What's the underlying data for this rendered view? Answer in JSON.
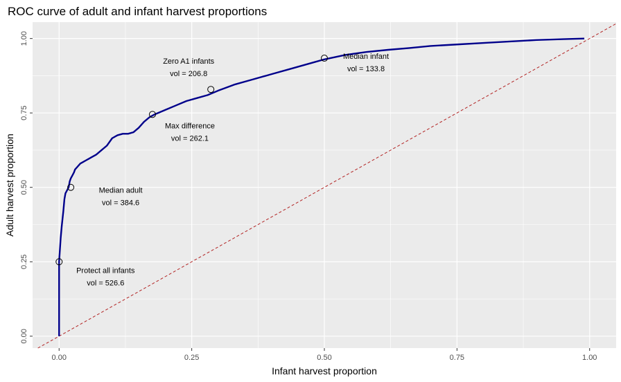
{
  "chart_data": {
    "type": "line",
    "title": "ROC curve of adult and infant harvest proportions",
    "xlabel": "Infant harvest proportion",
    "ylabel": "Adult harvest proportion",
    "xlim": [
      -0.05,
      1.05
    ],
    "ylim": [
      -0.04,
      1.055
    ],
    "x_ticks": [
      0.0,
      0.25,
      0.5,
      0.75,
      1.0
    ],
    "x_tick_labels": [
      "0.00",
      "0.25",
      "0.50",
      "0.75",
      "1.00"
    ],
    "y_ticks": [
      0.0,
      0.25,
      0.5,
      0.75,
      1.0
    ],
    "y_tick_labels": [
      "0.00",
      "0.25",
      "0.50",
      "0.75",
      "1.00"
    ],
    "grid": true,
    "colors": {
      "panel": "#ebebeb",
      "grid": "#ffffff",
      "curve": "#00008b",
      "reference": "#b22222"
    },
    "series": [
      {
        "x": [
          0.0,
          0.0,
          0.003,
          0.005,
          0.008,
          0.01,
          0.012,
          0.015,
          0.018,
          0.02,
          0.022,
          0.025,
          0.028,
          0.03,
          0.035,
          0.04,
          0.045,
          0.05,
          0.06,
          0.07,
          0.08,
          0.09,
          0.1,
          0.11,
          0.12,
          0.13,
          0.14,
          0.15,
          0.16,
          0.17,
          0.18,
          0.2,
          0.22,
          0.24,
          0.26,
          0.28,
          0.3,
          0.33,
          0.36,
          0.4,
          0.44,
          0.48,
          0.5,
          0.54,
          0.58,
          0.62,
          0.66,
          0.7,
          0.75,
          0.8,
          0.85,
          0.9,
          0.95,
          0.99
        ],
        "y": [
          0.0,
          0.25,
          0.33,
          0.37,
          0.42,
          0.46,
          0.48,
          0.49,
          0.5,
          0.52,
          0.53,
          0.54,
          0.55,
          0.56,
          0.57,
          0.58,
          0.585,
          0.59,
          0.6,
          0.61,
          0.625,
          0.64,
          0.665,
          0.675,
          0.68,
          0.68,
          0.685,
          0.7,
          0.72,
          0.735,
          0.745,
          0.76,
          0.775,
          0.79,
          0.8,
          0.81,
          0.825,
          0.845,
          0.86,
          0.88,
          0.9,
          0.92,
          0.93,
          0.945,
          0.955,
          0.962,
          0.968,
          0.975,
          0.98,
          0.985,
          0.99,
          0.995,
          0.998,
          1.0
        ]
      },
      {
        "x": [
          0.0,
          1.0
        ],
        "y": [
          0.0,
          1.0
        ]
      }
    ],
    "points": [
      {
        "x": 0.0,
        "y": 0.25,
        "label": "Protect all infants",
        "value": "vol = 526.6"
      },
      {
        "x": 0.022,
        "y": 0.5,
        "label": "Median adult",
        "value": "vol = 384.6"
      },
      {
        "x": 0.176,
        "y": 0.745,
        "label": "Max difference",
        "value": "vol = 262.1"
      },
      {
        "x": 0.286,
        "y": 0.829,
        "label": "Zero A1 infants",
        "value": "vol = 206.8"
      },
      {
        "x": 0.5,
        "y": 0.934,
        "label": "Median infant",
        "value": "vol = 133.8"
      }
    ]
  }
}
